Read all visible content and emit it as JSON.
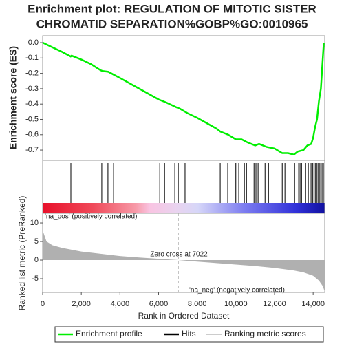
{
  "chart_data": [
    {
      "type": "line",
      "title": [
        "Enrichment plot: REGULATION OF MITOTIC SISTER",
        "CHROMATID SEPARATION%GOBP%GO:0010965"
      ],
      "ylabel": "Enrichment score (ES)",
      "xlim": [
        0,
        14600
      ],
      "ylim": [
        -0.767,
        0.045
      ],
      "yticks": [
        {
          "value": 0,
          "label": "0.0"
        },
        -0.1,
        -0.2,
        -0.3,
        -0.4,
        -0.5,
        -0.6,
        -0.7
      ],
      "series": [
        {
          "name": "Enrichment profile",
          "color": "#00ee00",
          "x": [
            0,
            500,
            1000,
            1450,
            1500,
            2000,
            2500,
            3000,
            3100,
            3400,
            3700,
            4000,
            5000,
            6000,
            6100,
            6400,
            6900,
            7100,
            7500,
            8000,
            9000,
            9200,
            9600,
            10000,
            10300,
            10600,
            11000,
            11200,
            11600,
            12000,
            12400,
            12700,
            13000,
            13200,
            13500,
            13700,
            13900,
            14000,
            14100,
            14200,
            14300,
            14400,
            14450,
            14500,
            14550
          ],
          "values": [
            0,
            -0.03,
            -0.06,
            -0.09,
            -0.085,
            -0.11,
            -0.14,
            -0.18,
            -0.185,
            -0.19,
            -0.21,
            -0.23,
            -0.3,
            -0.37,
            -0.375,
            -0.39,
            -0.42,
            -0.43,
            -0.46,
            -0.49,
            -0.56,
            -0.58,
            -0.6,
            -0.63,
            -0.63,
            -0.65,
            -0.67,
            -0.66,
            -0.68,
            -0.69,
            -0.72,
            -0.72,
            -0.73,
            -0.71,
            -0.7,
            -0.67,
            -0.66,
            -0.62,
            -0.55,
            -0.5,
            -0.38,
            -0.3,
            -0.2,
            -0.1,
            0
          ]
        }
      ]
    },
    {
      "type": "rug",
      "xlim": [
        0,
        14600
      ],
      "series": [
        {
          "name": "Hits",
          "color": "#000000",
          "x": [
            1460,
            3060,
            3380,
            3670,
            6060,
            6310,
            6840,
            7020,
            7370,
            9190,
            9580,
            9980,
            10050,
            10150,
            10440,
            10550,
            10940,
            11040,
            11150,
            11510,
            11690,
            12400,
            12540,
            13040,
            13250,
            13320,
            13400,
            13610,
            13750,
            13890,
            13970,
            14040,
            14110,
            14180,
            14250,
            14320,
            14390,
            14460,
            14530
          ]
        }
      ]
    },
    {
      "type": "area",
      "ylabel": "Ranked list metric (PreRanked)",
      "xlabel": "Rank in Ordered Dataset",
      "xlim": [
        0,
        14600
      ],
      "ylim": [
        -8.7,
        12.6
      ],
      "yticks": [
        10,
        5,
        0,
        -5
      ],
      "xticks": [
        0,
        {
          "value": 2000,
          "label": "2,000"
        },
        {
          "value": 4000,
          "label": "4,000"
        },
        {
          "value": 6000,
          "label": "6,000"
        },
        {
          "value": 8000,
          "label": "8,000"
        },
        {
          "value": 10000,
          "label": "10,000"
        },
        {
          "value": 12000,
          "label": "12,000"
        },
        {
          "value": 14000,
          "label": "14,000"
        }
      ],
      "annotations": [
        "'na_pos' (positively correlated)",
        "Zero cross at 7022",
        "'na_neg' (negatively correlated)"
      ],
      "series": [
        {
          "name": "Ranking metric scores",
          "color": "#b0b0b0",
          "x": [
            0,
            200,
            500,
            1000,
            2000,
            3000,
            4000,
            5000,
            6000,
            7022,
            8000,
            9000,
            10000,
            11000,
            12000,
            13000,
            13500,
            14000,
            14300,
            14500,
            14600
          ],
          "values": [
            8,
            5,
            4,
            3.3,
            2.3,
            1.7,
            1.1,
            0.7,
            0.35,
            0,
            -0.4,
            -0.8,
            -1.2,
            -1.6,
            -2.1,
            -2.8,
            -3.3,
            -4.2,
            -5.5,
            -7,
            -8.5
          ]
        }
      ]
    }
  ]
}
